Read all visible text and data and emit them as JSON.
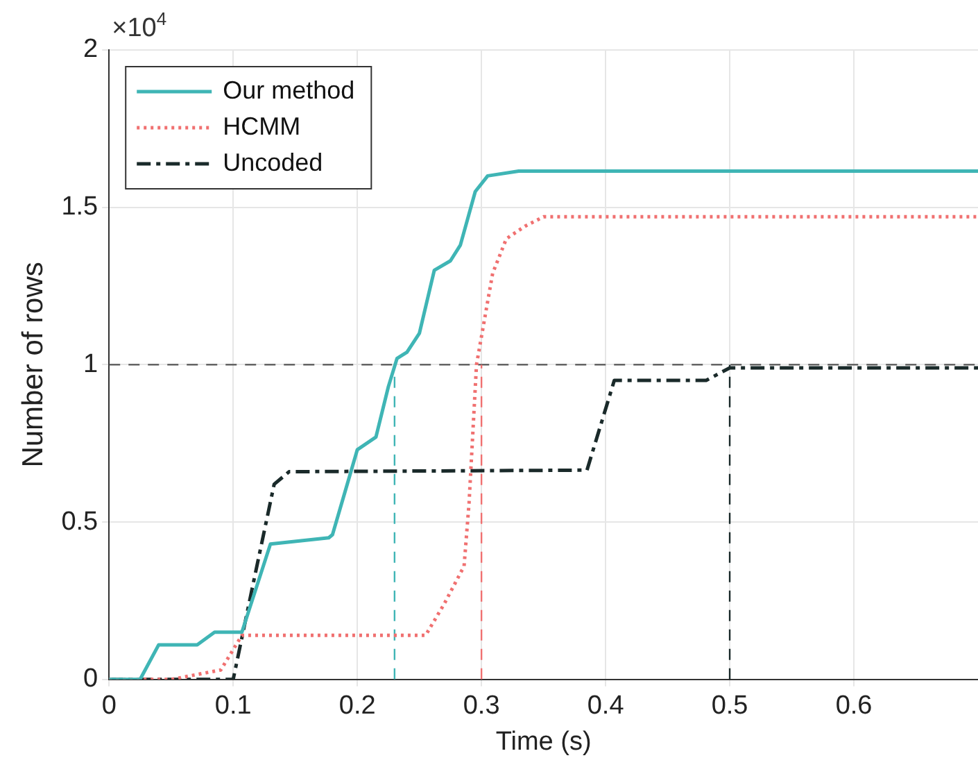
{
  "chart_data": {
    "type": "line",
    "ylabel": "Number of rows",
    "xlabel": "Time (s)",
    "annotations": [
      "×10$^{4}$"
    ],
    "xlim": [
      0,
      0.7
    ],
    "xticks": [
      0,
      0.1,
      0.2,
      0.3,
      0.4,
      0.5,
      0.6
    ],
    "ylim": [
      0,
      2
    ],
    "yticks": [
      0,
      0.5,
      1,
      1.5,
      2
    ],
    "grid": true,
    "legend": "top left",
    "marker": "none",
    "series": [
      {
        "name": "Our method",
        "color": "#3fb5b5",
        "line_style": "solid",
        "x": [
          0,
          0.025,
          0.04,
          0.071,
          0.085,
          0.107,
          0.13,
          0.177,
          0.18,
          0.2,
          0.215,
          0.225,
          0.232,
          0.24,
          0.25,
          0.262,
          0.275,
          0.283,
          0.295,
          0.305,
          0.33,
          0.7
        ],
        "values": [
          0,
          0,
          0.11,
          0.11,
          0.15,
          0.15,
          0.43,
          0.45,
          0.46,
          0.73,
          0.77,
          0.93,
          1.02,
          1.04,
          1.1,
          1.3,
          1.33,
          1.38,
          1.55,
          1.6,
          1.615,
          1.615
        ]
      },
      {
        "name": "HCMM",
        "color": "#f07070",
        "line_style": "dotted",
        "x": [
          0,
          0.05,
          0.09,
          0.107,
          0.255,
          0.27,
          0.286,
          0.29,
          0.296,
          0.309,
          0.32,
          0.335,
          0.35,
          0.7
        ],
        "values": [
          0,
          0,
          0.03,
          0.14,
          0.14,
          0.24,
          0.36,
          0.56,
          1,
          1.29,
          1.4,
          1.44,
          1.47,
          1.47
        ]
      },
      {
        "name": "Uncoded",
        "color": "#1a2a2a",
        "line_style": "dashdot",
        "x": [
          0,
          0.1,
          0.118,
          0.133,
          0.145,
          0.385,
          0.407,
          0.481,
          0.5,
          0.7
        ],
        "values": [
          0,
          0,
          0.34,
          0.62,
          0.66,
          0.665,
          0.95,
          0.95,
          0.99,
          0.99
        ]
      },
      {
        "color": "#3fb5b5",
        "line_style": "dashed",
        "x": [
          0.23,
          0.23
        ],
        "values": [
          0,
          1
        ]
      },
      {
        "color": "#f07070",
        "line_style": "dashed",
        "x": [
          0.3,
          0.3
        ],
        "values": [
          0,
          1
        ]
      },
      {
        "color": "#1a2a2a",
        "line_style": "dashed",
        "x": [
          0.5,
          0.5
        ],
        "values": [
          0,
          1
        ]
      }
    ],
    "ref_lines": [
      {
        "axis": "y",
        "value": 1,
        "color": "#555555",
        "line_style": "dashed"
      }
    ]
  }
}
